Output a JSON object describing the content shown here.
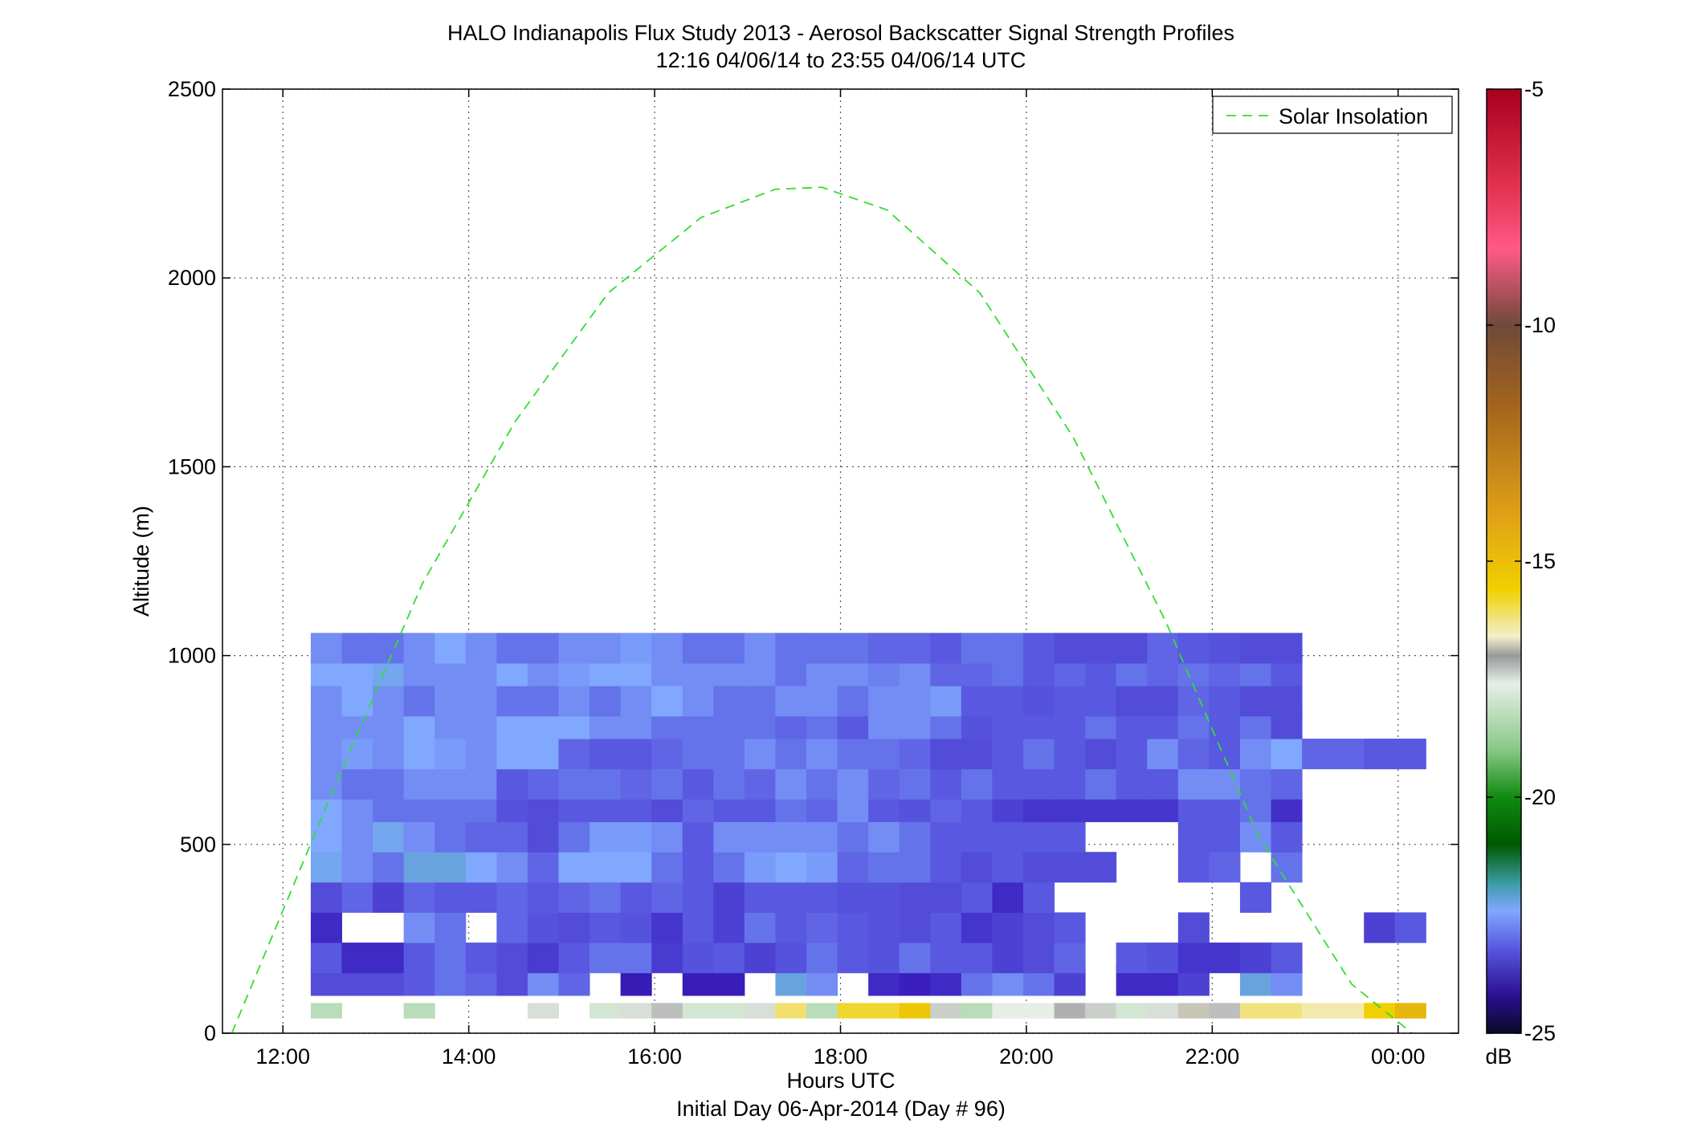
{
  "chart_data": {
    "type": "heatmap",
    "title": "HALO Indianapolis Flux Study 2013 - Aerosol Backscatter Signal Strength Profiles",
    "subtitle": "12:16 04/06/14 to 23:55 04/06/14  UTC",
    "xlabel": "Hours UTC",
    "xlabel2": "Initial Day 06-Apr-2014 (Day # 96)",
    "ylabel": "Altitude (m)",
    "xlim": [
      11.35,
      24.65
    ],
    "ylim": [
      0,
      2500
    ],
    "x_ticks": [
      {
        "value": 12,
        "label": "12:00"
      },
      {
        "value": 14,
        "label": "14:00"
      },
      {
        "value": 16,
        "label": "16:00"
      },
      {
        "value": 18,
        "label": "18:00"
      },
      {
        "value": 20,
        "label": "20:00"
      },
      {
        "value": 22,
        "label": "22:00"
      },
      {
        "value": 24,
        "label": "00:00"
      }
    ],
    "y_ticks": [
      0,
      500,
      1000,
      1500,
      2000,
      2500
    ],
    "grid": true,
    "colorbar": {
      "label": "dB",
      "range": [
        -25,
        -5
      ],
      "ticks": [
        -5,
        -10,
        -15,
        -20,
        -25
      ]
    },
    "legend": {
      "position": "top-right",
      "entries": [
        {
          "name": "Solar Insolation",
          "style": "dashed",
          "color": "#33dd33"
        }
      ]
    },
    "solar_insolation": {
      "x": [
        11.45,
        12.5,
        13.5,
        14.5,
        15.5,
        16.5,
        17.3,
        17.8,
        18.5,
        19.5,
        20.5,
        21.5,
        22.5,
        23.5,
        24.15
      ],
      "y": [
        0,
        620,
        1190,
        1620,
        1960,
        2160,
        2235,
        2240,
        2180,
        1960,
        1580,
        1090,
        520,
        130,
        0
      ]
    },
    "grid_spec": {
      "x_start": 12.3,
      "x_step": 0.3333,
      "altitudes": [
        60,
        140,
        200,
        280,
        360,
        440,
        520,
        600,
        660,
        740,
        820,
        880,
        960,
        1020
      ]
    },
    "heatmap_rows": [
      [
        -16.5,
        null,
        null,
        -16.5,
        null,
        null,
        null,
        -15.5,
        null,
        -16,
        -15.5,
        -15.3,
        -16,
        -16,
        -15.5,
        -14.2,
        -16.5,
        -13.8,
        -13.8,
        -13.2,
        -15.4,
        -16.5,
        -15.6,
        -15.6,
        -15.2,
        -15.4,
        -16,
        -15.5,
        -15.0,
        -15.3,
        -14.3,
        -14.3,
        -14.6,
        -14.6,
        -13.5,
        -12.7
      ],
      [
        -22.2,
        -22.2,
        -22.2,
        -22.0,
        -21.8,
        -21.9,
        -22.2,
        -21.6,
        -21.9,
        null,
        -23.2,
        null,
        -23.1,
        -23.1,
        null,
        -21.2,
        -21.6,
        null,
        -22.8,
        -23.0,
        -22.8,
        -21.8,
        -21.6,
        -21.8,
        -22.4,
        null,
        -22.8,
        -22.8,
        -22.4,
        null,
        -21.2,
        -21.6
      ],
      [
        -22.0,
        -22.8,
        -22.8,
        -22.0,
        -21.8,
        -22.0,
        -22.2,
        -22.5,
        -22.0,
        -21.8,
        -21.8,
        -22.5,
        -22.1,
        -22.0,
        -22.4,
        -22.1,
        -21.8,
        -22.0,
        -22.1,
        -21.8,
        -22.0,
        -22.0,
        -22.4,
        -22.2,
        -21.9,
        null,
        -22.0,
        -22.1,
        -22.6,
        -22.6,
        -22.4,
        -22.0
      ],
      [
        -22.8,
        null,
        null,
        -21.6,
        -21.8,
        null,
        -21.9,
        -22.1,
        -22.2,
        -22.0,
        -22.1,
        -22.6,
        -22.0,
        -22.4,
        -21.8,
        -22.0,
        -21.9,
        -22.0,
        -22.1,
        -22.2,
        -22.0,
        -22.6,
        -22.4,
        -22.2,
        -22.0,
        null,
        null,
        null,
        -22.2,
        null,
        null,
        null,
        null,
        null,
        -22.4,
        -22.0
      ],
      [
        -22.2,
        -21.9,
        -22.4,
        -21.9,
        -22.0,
        -22.0,
        -21.9,
        -22.0,
        -21.9,
        -21.8,
        -22.0,
        -21.9,
        -22.0,
        -22.4,
        -22.0,
        -22.0,
        -22.0,
        -22.1,
        -22.1,
        -22.2,
        -22.2,
        -22.0,
        -22.8,
        -22.0,
        null,
        null,
        null,
        null,
        null,
        null,
        -22.0,
        null
      ],
      [
        -21.3,
        -21.6,
        -21.8,
        -21.2,
        -21.2,
        -21.4,
        -21.6,
        -21.9,
        -21.4,
        -21.4,
        -21.4,
        -21.8,
        -22.0,
        -21.8,
        -21.5,
        -21.4,
        -21.5,
        -21.9,
        -21.8,
        -21.8,
        -22.0,
        -22.2,
        -22.0,
        -22.2,
        -22.2,
        -22.2,
        null,
        null,
        -22.0,
        -21.9,
        null,
        -21.8
      ],
      [
        -21.4,
        -21.6,
        -21.3,
        -21.6,
        -21.8,
        -21.9,
        -21.9,
        -22.2,
        -21.8,
        -21.5,
        -21.5,
        -21.6,
        -22.0,
        -21.6,
        -21.6,
        -21.6,
        -21.6,
        -21.8,
        -21.6,
        -21.8,
        -22.0,
        -22.0,
        -22.0,
        -22.0,
        -22.0,
        null,
        null,
        null,
        -22.0,
        -22.0,
        -21.6,
        -22.0
      ],
      [
        -21.4,
        -21.6,
        -21.8,
        -21.8,
        -21.8,
        -21.8,
        -22.1,
        -22.2,
        -22.0,
        -22.0,
        -22.0,
        -22.2,
        -21.9,
        -22.0,
        -22.0,
        -21.8,
        -21.9,
        -21.6,
        -22.0,
        -22.1,
        -21.9,
        -22.0,
        -22.4,
        -22.6,
        -22.6,
        -22.6,
        -22.6,
        -22.6,
        -22.0,
        -22.0,
        -21.8,
        -22.7
      ],
      [
        -21.6,
        -21.8,
        -21.8,
        -21.6,
        -21.6,
        -21.6,
        -22.0,
        -21.9,
        -21.8,
        -21.8,
        -21.9,
        -21.8,
        -22.0,
        -21.8,
        -21.9,
        -21.6,
        -21.8,
        -21.6,
        -21.9,
        -21.8,
        -22.0,
        -21.8,
        -22.0,
        -22.0,
        -22.0,
        -21.8,
        -22.0,
        -22.0,
        -21.6,
        -21.6,
        -21.8,
        -21.9
      ],
      [
        -21.6,
        -21.5,
        -21.6,
        -21.4,
        -21.5,
        -21.6,
        -21.4,
        -21.4,
        -21.9,
        -22.0,
        -22.0,
        -21.9,
        -21.8,
        -21.8,
        -21.6,
        -21.8,
        -21.6,
        -21.8,
        -21.8,
        -21.9,
        -22.2,
        -22.2,
        -22.0,
        -21.8,
        -22.0,
        -22.2,
        -22.0,
        -21.6,
        -21.9,
        -22.0,
        -21.6,
        -21.4,
        -21.9,
        -21.9,
        -22.0,
        -22.0
      ],
      [
        -21.6,
        -21.6,
        -21.6,
        -21.4,
        -21.6,
        -21.6,
        -21.4,
        -21.4,
        -21.4,
        -21.6,
        -21.6,
        -21.8,
        -21.8,
        -21.8,
        -21.8,
        -21.9,
        -21.8,
        -22.0,
        -21.6,
        -21.6,
        -21.8,
        -22.1,
        -22.0,
        -22.0,
        -22.0,
        -21.8,
        -22.0,
        -22.0,
        -21.8,
        -22.0,
        -21.8,
        -22.2
      ],
      [
        -21.6,
        -21.4,
        -21.6,
        -21.8,
        -21.6,
        -21.6,
        -21.8,
        -21.8,
        -21.6,
        -21.8,
        -21.6,
        -21.4,
        -21.6,
        -21.8,
        -21.8,
        -21.6,
        -21.6,
        -21.8,
        -21.6,
        -21.6,
        -21.5,
        -22.0,
        -22.0,
        -22.1,
        -22.0,
        -22.0,
        -22.2,
        -22.2,
        -21.9,
        -22.0,
        -22.2,
        -22.2
      ],
      [
        -21.4,
        -21.4,
        -21.3,
        -21.6,
        -21.6,
        -21.6,
        -21.4,
        -21.6,
        -21.5,
        -21.4,
        -21.4,
        -21.6,
        -21.6,
        -21.6,
        -21.6,
        -21.8,
        -21.6,
        -21.6,
        -21.7,
        -21.6,
        -21.9,
        -21.9,
        -21.8,
        -22.0,
        -21.9,
        -22.0,
        -21.8,
        -21.9,
        -21.8,
        -21.9,
        -21.8,
        -22.0
      ],
      [
        -21.6,
        -21.8,
        -21.8,
        -21.6,
        -21.4,
        -21.6,
        -21.8,
        -21.8,
        -21.6,
        -21.6,
        -21.5,
        -21.6,
        -21.8,
        -21.8,
        -21.6,
        -21.8,
        -21.8,
        -21.8,
        -21.9,
        -21.9,
        -22.0,
        -21.8,
        -21.8,
        -22.0,
        -22.2,
        -22.2,
        -22.2,
        -21.9,
        -22.0,
        -22.1,
        -22.2,
        -22.2
      ]
    ]
  }
}
